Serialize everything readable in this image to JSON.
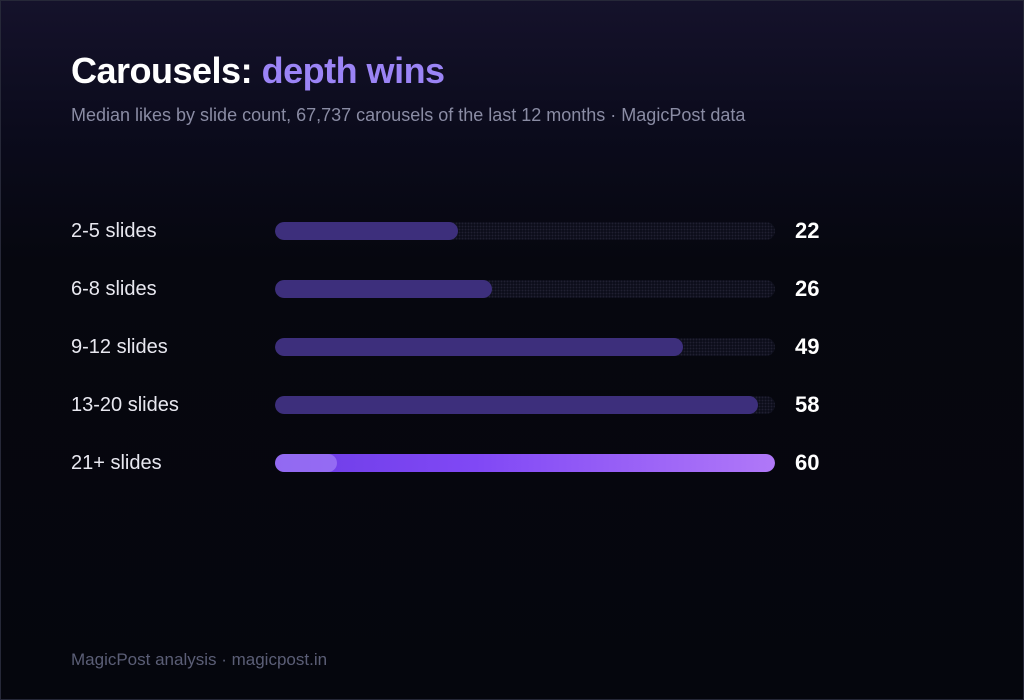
{
  "header": {
    "title_main": "Carousels: ",
    "title_accent": "depth wins",
    "subtitle": "Median likes by slide count, 67,737 carousels of the last 12 months · MagicPost data"
  },
  "footer": {
    "text": "MagicPost analysis · magicpost.in"
  },
  "colors": {
    "bar": "#3d2f7c",
    "highlight_start": "#6d3de6",
    "highlight_end": "#b078f8",
    "accent": "#9b84f6"
  },
  "chart_data": {
    "type": "bar",
    "orientation": "horizontal",
    "categories": [
      "2-5 slides",
      "6-8 slides",
      "9-12 slides",
      "13-20 slides",
      "21+ slides"
    ],
    "values": [
      22,
      26,
      49,
      58,
      60
    ],
    "title": "Carousels: depth wins",
    "subtitle": "Median likes by slide count, 67,737 carousels of the last 12 months · MagicPost data",
    "xlim": [
      0,
      60
    ],
    "highlight_category": "21+ slides",
    "grid": false,
    "legend": "none"
  }
}
